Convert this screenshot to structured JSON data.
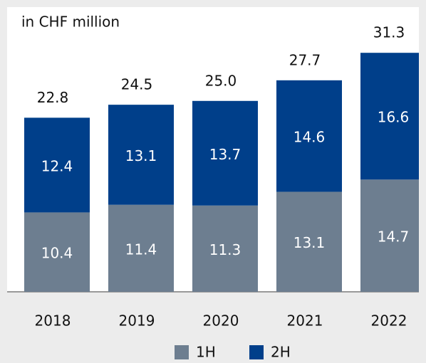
{
  "chart_data": {
    "type": "stacked_bar",
    "title": "in CHF million",
    "categories": [
      "2018",
      "2019",
      "2020",
      "2021",
      "2022"
    ],
    "series": [
      {
        "name": "1H",
        "color": "#6d7e90",
        "values": [
          10.4,
          11.4,
          11.3,
          13.1,
          14.7
        ]
      },
      {
        "name": "2H",
        "color": "#003f8a",
        "values": [
          12.4,
          13.1,
          13.7,
          14.6,
          16.6
        ]
      }
    ],
    "totals": [
      22.8,
      24.5,
      25,
      27.7,
      31.3
    ],
    "totals_value_labels": [
      "22.8",
      "24.5",
      "25.0",
      "27.7",
      "31.3"
    ],
    "ylim": [
      0,
      35
    ]
  }
}
